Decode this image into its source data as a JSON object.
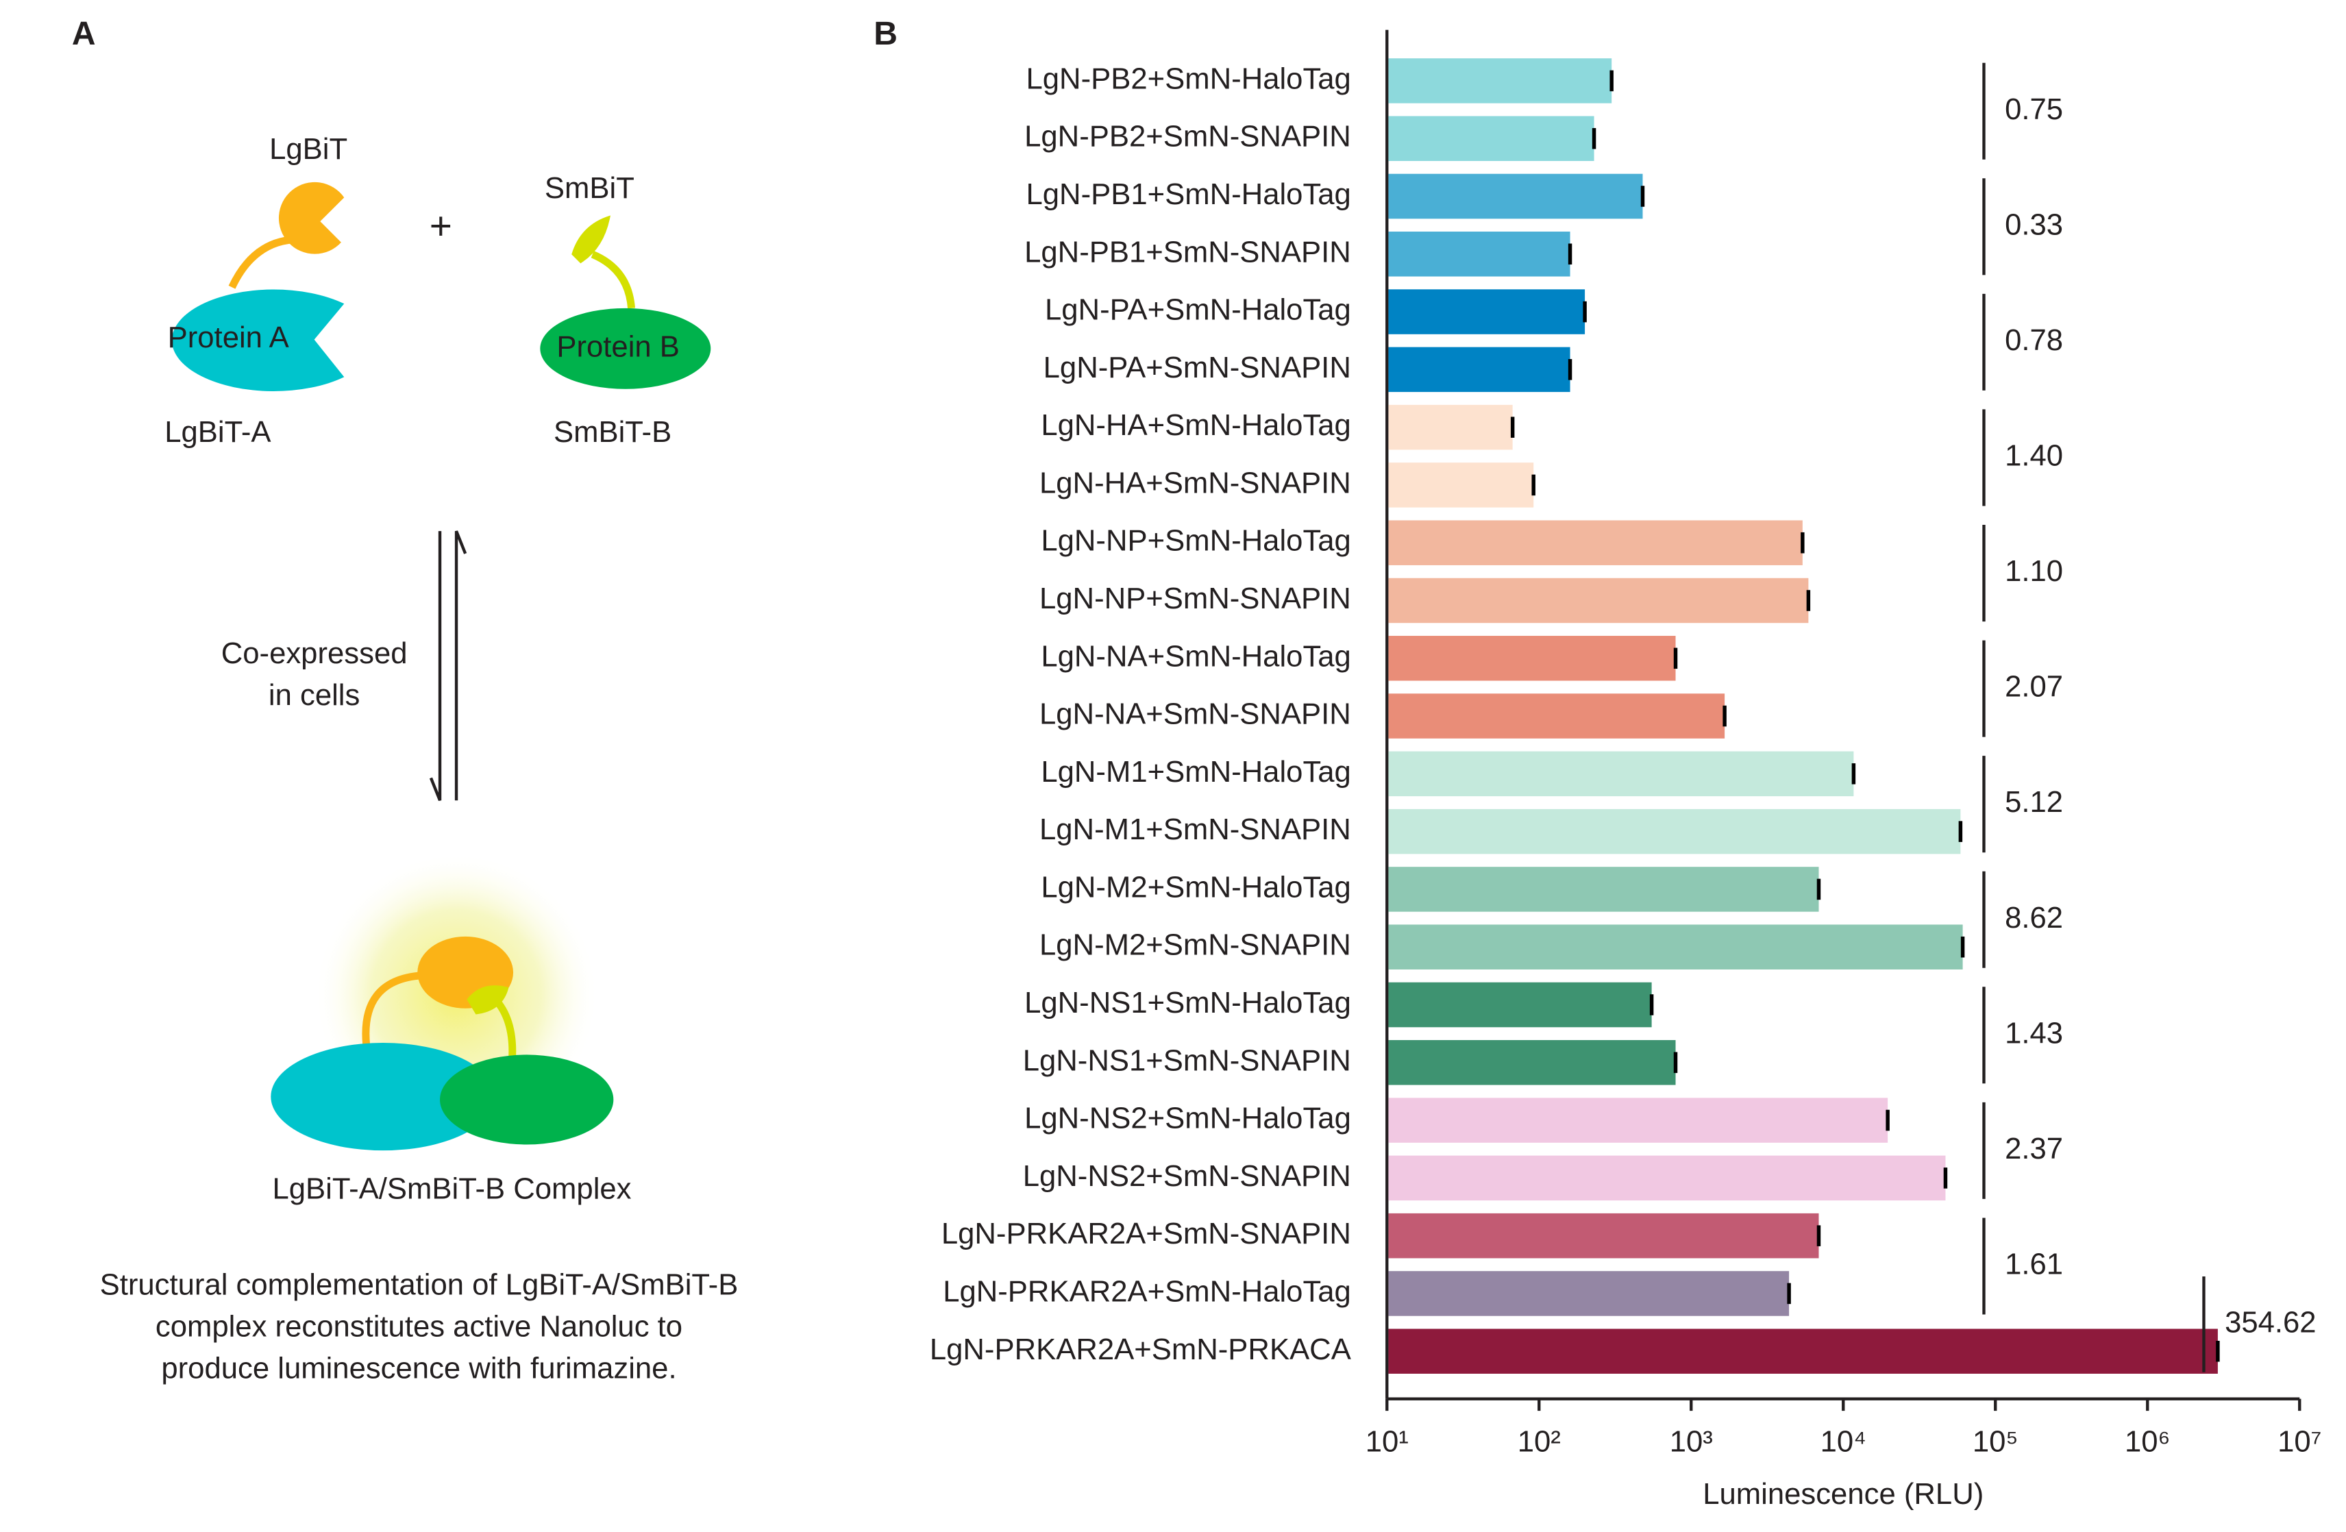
{
  "diagram": {
    "panel_a": "A",
    "lgbit": "LgBiT",
    "smbit": "SmBiT",
    "plus": "+",
    "protein_a": "Protein A",
    "protein_b": "Protein B",
    "lgbit_a": "LgBiT-A",
    "smbit_b": "SmBiT-B",
    "process": [
      "Co-expressed",
      "in cells"
    ],
    "complex": "LgBiT-A/SmBiT-B Complex",
    "caption": [
      "Structural complementation of LgBiT-A/SmBiT-B",
      "complex reconstitutes active Nanoluc to",
      "produce luminescence with furimazine."
    ]
  },
  "chart_data": {
    "type": "barh",
    "panel": "B",
    "xlabel": "Luminescence (RLU)",
    "xscale": "log",
    "xlim": [
      10,
      10000000
    ],
    "xticks": [
      {
        "value": 10,
        "label": "10¹"
      },
      {
        "value": 100,
        "label": "10²"
      },
      {
        "value": 1000,
        "label": "10³"
      },
      {
        "value": 10000,
        "label": "10⁴"
      },
      {
        "value": 100000,
        "label": "10⁵"
      },
      {
        "value": 1000000,
        "label": "10⁶"
      },
      {
        "value": 10000000,
        "label": "10⁷"
      }
    ],
    "categories": [
      "LgN-PB2+SmN-HaloTag",
      "LgN-PB2+SmN-SNAPIN",
      "LgN-PB1+SmN-HaloTag",
      "LgN-PB1+SmN-SNAPIN",
      "LgN-PA+SmN-HaloTag",
      "LgN-PA+SmN-SNAPIN",
      "LgN-HA+SmN-HaloTag",
      "LgN-HA+SmN-SNAPIN",
      "LgN-NP+SmN-HaloTag",
      "LgN-NP+SmN-SNAPIN",
      "LgN-NA+SmN-HaloTag",
      "LgN-NA+SmN-SNAPIN",
      "LgN-M1+SmN-HaloTag",
      "LgN-M1+SmN-SNAPIN",
      "LgN-M2+SmN-HaloTag",
      "LgN-M2+SmN-SNAPIN",
      "LgN-NS1+SmN-HaloTag",
      "LgN-NS1+SmN-SNAPIN",
      "LgN-NS2+SmN-HaloTag",
      "LgN-NS2+SmN-SNAPIN",
      "LgN-PRKAR2A+SmN-SNAPIN",
      "LgN-PRKAR2A+SmN-HaloTag",
      "LgN-PRKAR2A+SmN-PRKACA"
    ],
    "values": [
      300,
      230,
      480,
      160,
      200,
      160,
      67,
      92,
      5400,
      5900,
      790,
      1660,
      11700,
      59000,
      6900,
      61000,
      550,
      790,
      19600,
      47000,
      6900,
      4400,
      2900000
    ],
    "colors": [
      "#8dd9dc",
      "#8dd9dc",
      "#4aafd5",
      "#4aafd5",
      "#0083c4",
      "#0083c4",
      "#fde2cf",
      "#fde2cf",
      "#f2b79e",
      "#f2b79e",
      "#e98d78",
      "#e98d78",
      "#c4e9dc",
      "#c4e9dc",
      "#8ec8b3",
      "#8ec8b3",
      "#3e9371",
      "#3e9371",
      "#f1c8e2",
      "#f1c8e2",
      "#c25b73",
      "#9486a4",
      "#8e1a3c"
    ],
    "annotations": [
      {
        "text": "0.75",
        "color": "#231f20"
      },
      {
        "text": "0.33",
        "color": "#231f20"
      },
      {
        "text": "0.78",
        "color": "#231f20"
      },
      {
        "text": "1.40",
        "color": "#231f20"
      },
      {
        "text": "1.10",
        "color": "#231f20"
      },
      {
        "text": "2.07",
        "color": "#231f20"
      },
      {
        "text": "5.12",
        "color": "#ff1e1e"
      },
      {
        "text": "8.62",
        "color": "#ff1e1e"
      },
      {
        "text": "1.43",
        "color": "#231f20"
      },
      {
        "text": "2.37",
        "color": "#ff1e1e"
      },
      {
        "text": "1.61",
        "color": "#231f20"
      },
      {
        "text": "354.62",
        "color": "#ff1e1e"
      }
    ]
  }
}
